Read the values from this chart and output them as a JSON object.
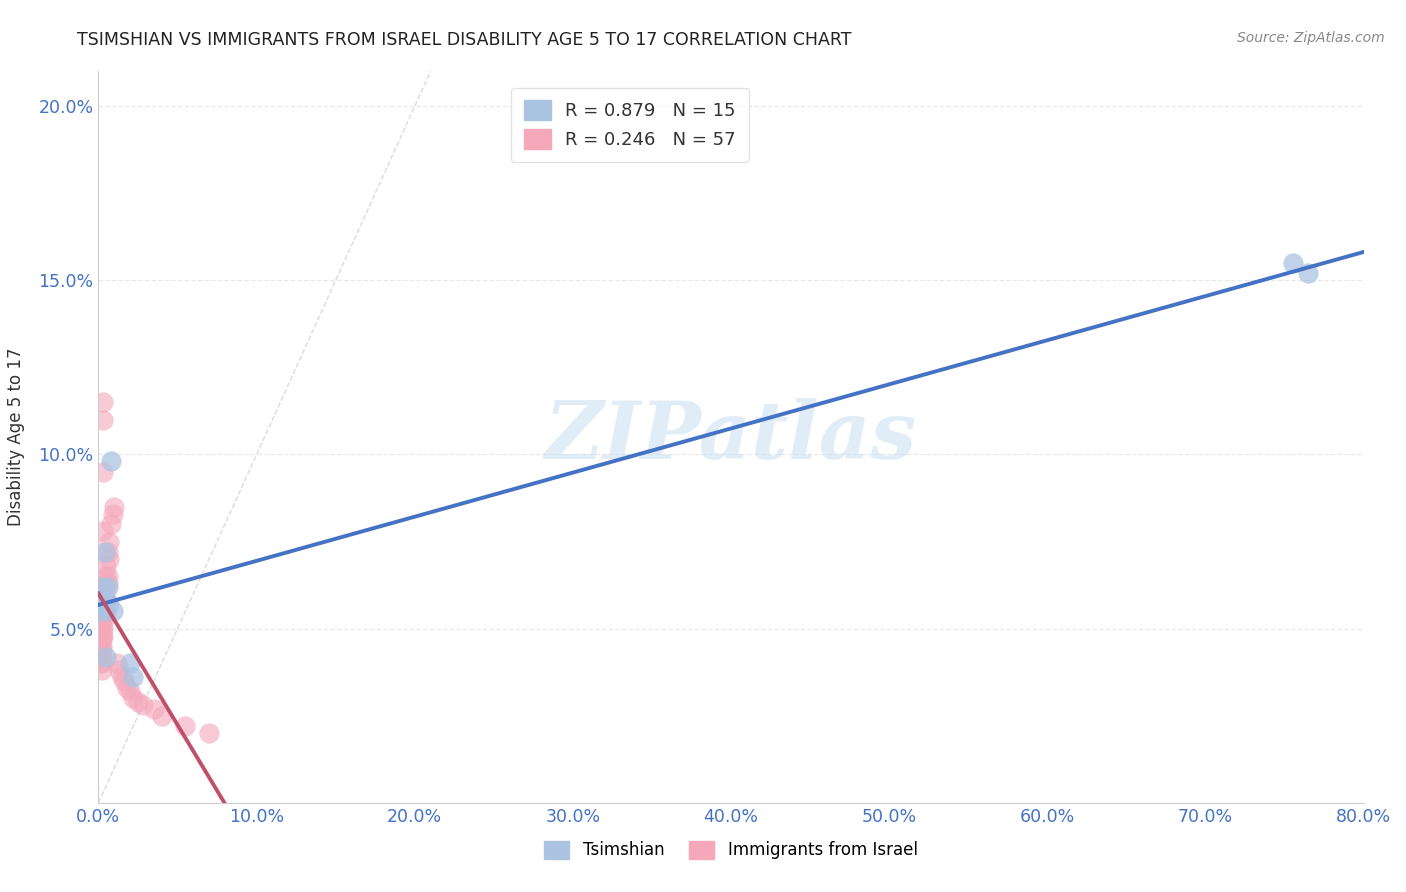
{
  "title": "TSIMSHIAN VS IMMIGRANTS FROM ISRAEL DISABILITY AGE 5 TO 17 CORRELATION CHART",
  "source": "Source: ZipAtlas.com",
  "ylabel": "Disability Age 5 to 17",
  "xlim": [
    0.0,
    0.8
  ],
  "ylim": [
    0.0,
    0.21
  ],
  "xticks": [
    0.0,
    0.1,
    0.2,
    0.3,
    0.4,
    0.5,
    0.6,
    0.7,
    0.8
  ],
  "xticklabels": [
    "0.0%",
    "10.0%",
    "20.0%",
    "30.0%",
    "40.0%",
    "50.0%",
    "60.0%",
    "70.0%",
    "80.0%"
  ],
  "yticks": [
    0.0,
    0.05,
    0.1,
    0.15,
    0.2
  ],
  "yticklabels": [
    "",
    "5.0%",
    "10.0%",
    "15.0%",
    "20.0%"
  ],
  "tsimshian_color": "#aac4e2",
  "israel_color": "#f4a8ba",
  "tsimshian_line_color": "#4472c4",
  "israel_line_color": "#c0506a",
  "diagonal_color": "#cccccc",
  "legend_R1": "R = 0.879",
  "legend_N1": "N = 15",
  "legend_R2": "R = 0.246",
  "legend_N2": "N = 57",
  "watermark": "ZIPatlas",
  "background_color": "#ffffff",
  "grid_color": "#e8e8e8",
  "tsimshian_x": [
    0.002,
    0.003,
    0.003,
    0.004,
    0.004,
    0.005,
    0.005,
    0.006,
    0.007,
    0.008,
    0.009,
    0.02,
    0.022,
    0.755,
    0.765
  ],
  "tsimshian_y": [
    0.055,
    0.057,
    0.062,
    0.072,
    0.056,
    0.058,
    0.042,
    0.062,
    0.057,
    0.098,
    0.055,
    0.04,
    0.036,
    0.155,
    0.152
  ],
  "israel_x": [
    0.001,
    0.001,
    0.001,
    0.001,
    0.001,
    0.001,
    0.001,
    0.001,
    0.002,
    0.002,
    0.002,
    0.002,
    0.002,
    0.002,
    0.002,
    0.002,
    0.002,
    0.002,
    0.003,
    0.003,
    0.003,
    0.003,
    0.003,
    0.003,
    0.003,
    0.003,
    0.003,
    0.004,
    0.004,
    0.004,
    0.004,
    0.004,
    0.005,
    0.005,
    0.005,
    0.005,
    0.006,
    0.006,
    0.006,
    0.007,
    0.007,
    0.008,
    0.009,
    0.01,
    0.012,
    0.013,
    0.015,
    0.016,
    0.018,
    0.02,
    0.022,
    0.025,
    0.028,
    0.035,
    0.04,
    0.055,
    0.07
  ],
  "israel_y": [
    0.056,
    0.052,
    0.05,
    0.048,
    0.047,
    0.046,
    0.043,
    0.04,
    0.054,
    0.052,
    0.05,
    0.048,
    0.047,
    0.045,
    0.044,
    0.042,
    0.04,
    0.038,
    0.078,
    0.11,
    0.115,
    0.095,
    0.056,
    0.054,
    0.052,
    0.05,
    0.048,
    0.065,
    0.062,
    0.06,
    0.058,
    0.055,
    0.068,
    0.063,
    0.058,
    0.055,
    0.072,
    0.065,
    0.063,
    0.075,
    0.07,
    0.08,
    0.083,
    0.085,
    0.04,
    0.038,
    0.036,
    0.035,
    0.033,
    0.032,
    0.03,
    0.029,
    0.028,
    0.027,
    0.025,
    0.022,
    0.02
  ]
}
